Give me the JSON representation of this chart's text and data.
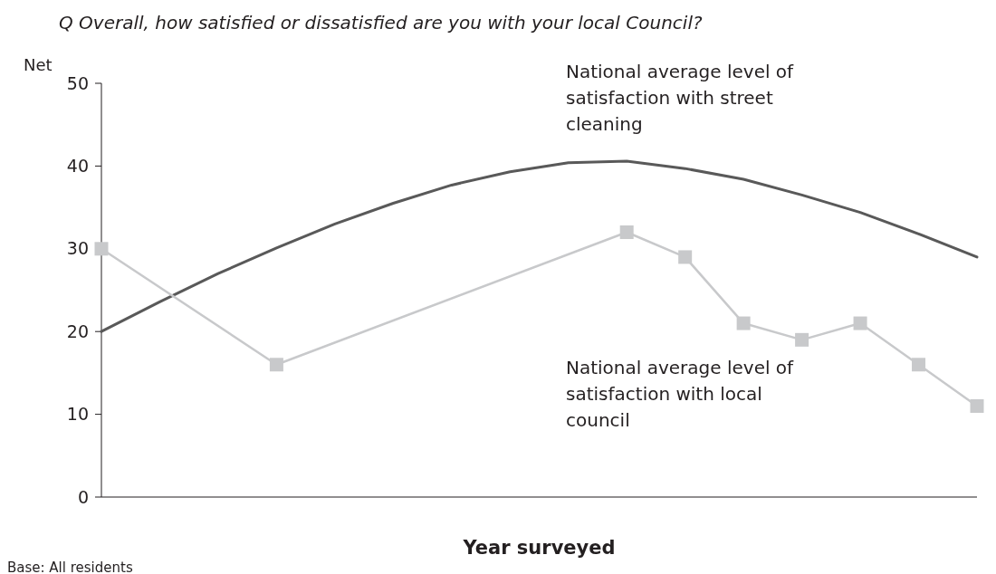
{
  "chart_data": {
    "type": "line",
    "title": "Q   Overall, how satisfied or dissatisfied are you with your local Council?",
    "ylabel": "Net",
    "xlabel": "Year surveyed",
    "annotations": [
      "Base: All residents"
    ],
    "categories": [
      null,
      null,
      null,
      null,
      null,
      null,
      null,
      null,
      null,
      null,
      null,
      null,
      null,
      null,
      null,
      null
    ],
    "ylim": [
      0,
      50
    ],
    "yticks": [
      0,
      10,
      20,
      30,
      40,
      50
    ],
    "grid": false,
    "legend": "right",
    "series": [
      {
        "name": "National average level of satisfaction with street cleaning",
        "color": "#595959",
        "marker": "none",
        "values": [
          20,
          23.6,
          27,
          30.1,
          33,
          35.5,
          37.7,
          39.3,
          40.4,
          40.6,
          39.7,
          38.4,
          36.5,
          34.4,
          31.8,
          29
        ]
      },
      {
        "name": "National average level of satisfaction with local council",
        "color": "#c8c9cb",
        "marker": "square",
        "values": [
          30,
          null,
          null,
          16,
          null,
          null,
          null,
          null,
          null,
          32,
          29,
          21,
          19,
          21,
          16,
          11
        ]
      }
    ]
  }
}
